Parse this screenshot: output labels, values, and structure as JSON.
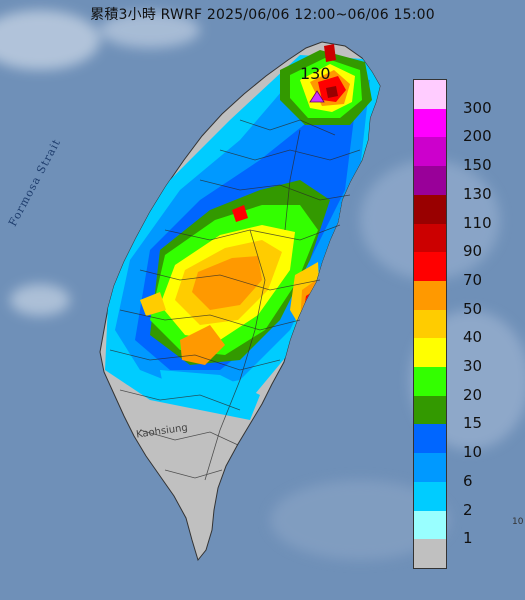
{
  "title": "累積3小時 RWRF 2025/06/06 12:00~06/06 15:00",
  "labels": {
    "strait": "Formosa Strait",
    "city": "Kaohsiung",
    "peak_value": "130",
    "corner_mark": "10"
  },
  "legend": {
    "items": [
      {
        "label": "300",
        "color": "#ffccff"
      },
      {
        "label": "200",
        "color": "#ff00ff"
      },
      {
        "label": "150",
        "color": "#cc00cc"
      },
      {
        "label": "130",
        "color": "#990099"
      },
      {
        "label": "110",
        "color": "#990000"
      },
      {
        "label": "90",
        "color": "#cc0000"
      },
      {
        "label": "70",
        "color": "#ff0000"
      },
      {
        "label": "50",
        "color": "#ff9900"
      },
      {
        "label": "40",
        "color": "#ffcc00"
      },
      {
        "label": "30",
        "color": "#ffff00"
      },
      {
        "label": "20",
        "color": "#33ff00"
      },
      {
        "label": "15",
        "color": "#339900"
      },
      {
        "label": "10",
        "color": "#0066ff"
      },
      {
        "label": "6",
        "color": "#0099ff"
      },
      {
        "label": "2",
        "color": "#00ccff"
      },
      {
        "label": "1",
        "color": "#99ffff"
      },
      {
        "label": "",
        "color": "#c0c0c0"
      }
    ]
  },
  "colors": {
    "sea": "#6f90b8",
    "land_no_rain": "#c0c0c0",
    "peak_marker": "#cc33ff"
  }
}
